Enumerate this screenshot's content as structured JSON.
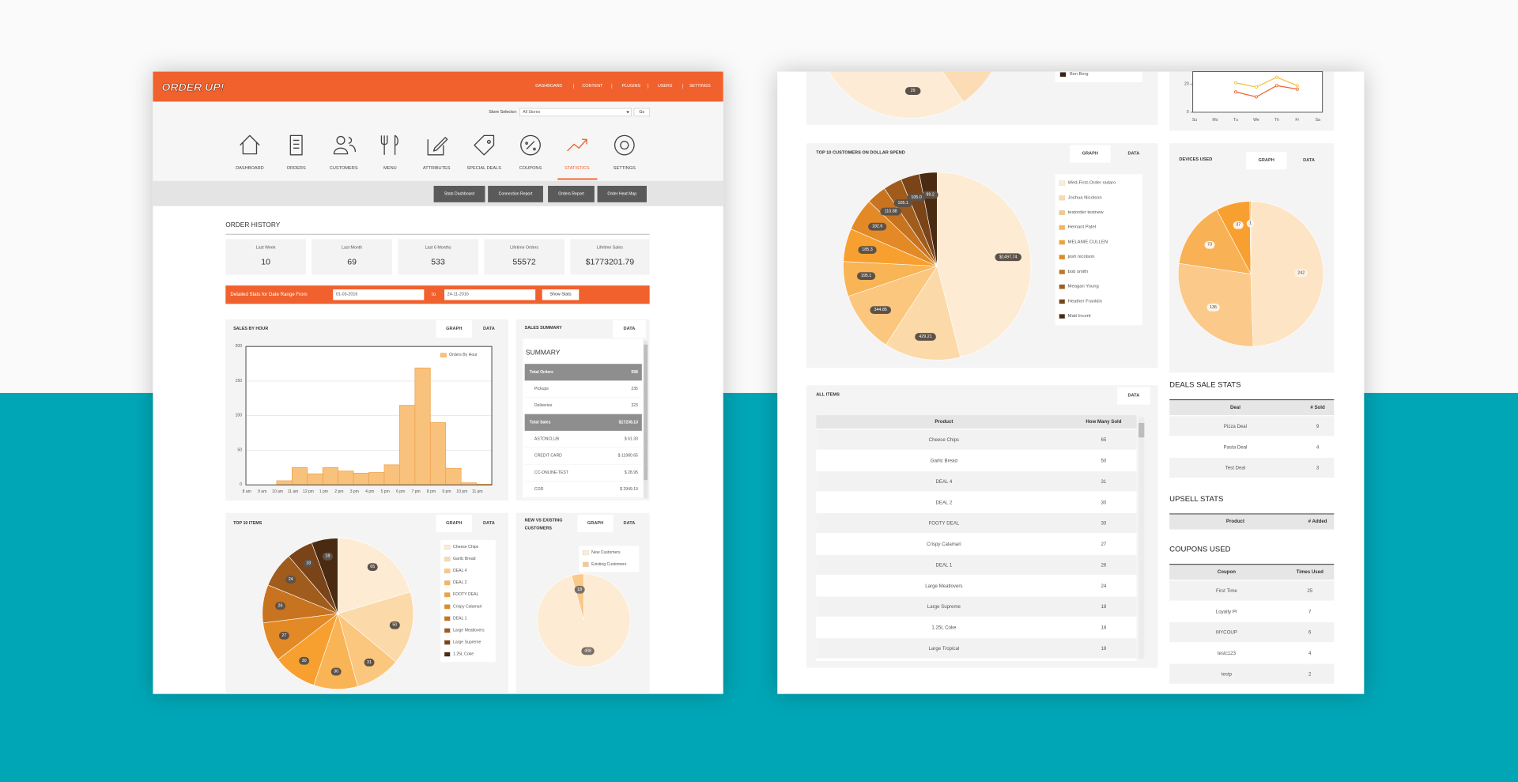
{
  "header": {
    "logo": "ORDER UP!",
    "nav": [
      "DASHBOARD",
      "CONTENT",
      "PLUGINS",
      "USERS",
      "SETTINGS"
    ]
  },
  "store_selector": {
    "label": "Store Selector:",
    "value": "All Stores",
    "button": "Go"
  },
  "menu": [
    "DASHBOARD",
    "ORDERS",
    "CUSTOMERS",
    "MENU",
    "ATTRIBUTES",
    "SPECIAL DEALS",
    "COUPONS",
    "STATISTICS",
    "SETTINGS"
  ],
  "subnav": [
    "Stats Dashboard",
    "Connection Report",
    "Orders Report",
    "Order Heat Map"
  ],
  "order_history": {
    "title": "ORDER HISTORY",
    "stats": [
      {
        "label": "Last Week",
        "value": 10
      },
      {
        "label": "Last Month",
        "value": 69
      },
      {
        "label": "Last 6 Months",
        "value": 533
      },
      {
        "label": "Lifetime Orders",
        "value": 55572
      },
      {
        "label": "Lifetime Sales",
        "value": "$1773201.79"
      }
    ]
  },
  "date_range": {
    "label": "Detailed Stats for Date Range From",
    "from": "01-03-2016",
    "to_label": "to",
    "to": "24-11-2016",
    "button": "Show Stats"
  },
  "sales_by_hour": {
    "title": "SALES BY HOUR",
    "tabs": [
      "GRAPH",
      "DATA"
    ],
    "chart_data": {
      "type": "bar",
      "categories": [
        "8 am",
        "9 am",
        "10 am",
        "11 am",
        "12 pm",
        "1 pm",
        "2 pm",
        "3 pm",
        "4 pm",
        "5 pm",
        "6 pm",
        "7 pm",
        "8 pm",
        "9 pm",
        "10 pm",
        "11 pm"
      ],
      "series": [
        {
          "name": "Orders By Hour",
          "color": "#f9c27c",
          "values": [
            0,
            0,
            6,
            25,
            16,
            25,
            20,
            17,
            18,
            29,
            115,
            169,
            90,
            24,
            3,
            1
          ]
        }
      ],
      "ylim": [
        0,
        200
      ],
      "yticks": [
        0,
        50,
        100,
        150,
        200
      ],
      "grid": true
    }
  },
  "sales_summary": {
    "title": "SALES SUMMARY",
    "tabs": [
      "DATA"
    ],
    "heading": "SUMMARY",
    "rows": [
      [
        "Total Orders",
        558
      ],
      [
        "Pickups",
        235
      ],
      [
        "Deliveries",
        323
      ],
      [
        "Total Sales",
        "$17238.13"
      ],
      [
        "ASTONCLUB",
        "$ 61.30"
      ],
      [
        "CREDIT CARD",
        "$ 11980.65"
      ],
      [
        "CC-ONLINE-TEST",
        "$ 28.95"
      ],
      [
        "COD",
        "$ 2949.19"
      ]
    ]
  },
  "top_items": {
    "title": "TOP 10 ITEMS",
    "tabs": [
      "GRAPH",
      "DATA"
    ],
    "chart_data": {
      "type": "pie",
      "categories": [
        "Cheese Chips",
        "Garlic Bread",
        "DEAL 4",
        "DEAL 2",
        "FOOTY DEAL",
        "Crispy Calamari",
        "DEAL 1",
        "Large Meatlovers",
        "Large Supreme",
        "1.25L Coke"
      ],
      "values": [
        65,
        50,
        31,
        30,
        30,
        27,
        26,
        24,
        18,
        18
      ],
      "colors": [
        "#fdebd3",
        "#fcd9a8",
        "#fbc77e",
        "#f9b455",
        "#f7a030",
        "#e38a26",
        "#c8731f",
        "#a05c1c",
        "#7a4418",
        "#4a2a10"
      ]
    }
  },
  "customers_split": {
    "title": [
      "NEW VS EXISTING",
      "CUSTOMERS"
    ],
    "tabs": [
      "GRAPH",
      "DATA"
    ],
    "chart_data": {
      "type": "pie",
      "categories": [
        "New Customers",
        "Existing Customers"
      ],
      "values": [
        408,
        18
      ],
      "colors": [
        "#fdebd3",
        "#f9c98a"
      ]
    }
  },
  "top_partial": {
    "legend_item": "Ben Borg",
    "slice_label": 29
  },
  "weekday_chart": {
    "chart_data": {
      "type": "line",
      "categories": [
        "Su",
        "Mo",
        "Tu",
        "We",
        "Th",
        "Fr",
        "Sa"
      ],
      "series": [
        {
          "color": "#f0612d",
          "values": [
            null,
            null,
            14.5,
            11,
            19,
            16.5,
            null
          ]
        },
        {
          "color": "#f3c13a",
          "values": [
            null,
            null,
            21,
            18,
            25,
            19,
            null
          ]
        }
      ],
      "ylim": [
        0,
        29
      ],
      "yticks": [
        0,
        20
      ]
    }
  },
  "top_customers": {
    "title": "TOP 10 CUSTOMERS ON DOLLAR SPEND",
    "tabs": [
      "GRAPH",
      "DATA"
    ],
    "chart_data": {
      "type": "pie",
      "categories": [
        "Wed-First-Order radaro",
        "Joshua Nicolson",
        "testorder testnew",
        "Hemant Patel",
        "MELANIE CULLEN",
        "josh nicolson",
        "bob smith",
        "Meagan Young",
        "Heather Franklin",
        "Matt Incerti"
      ],
      "values": [
        1497.74,
        429.21,
        344.85,
        195.1,
        185.3,
        182.6,
        110.88,
        105.1,
        105,
        99.2
      ],
      "value_labels": [
        "$1497.74",
        "429.21",
        "344.85",
        "195.1",
        "185.3",
        "182.6",
        "110.88",
        "105.1",
        "105.0",
        "99.2"
      ],
      "colors": [
        "#fdebd3",
        "#fcd9a8",
        "#fbc77e",
        "#f9b455",
        "#f7a030",
        "#e38a26",
        "#c8731f",
        "#a05c1c",
        "#7a4418",
        "#4a2a10"
      ]
    }
  },
  "all_items": {
    "title": "ALL ITEMS",
    "tabs": [
      "DATA"
    ],
    "header": [
      "Product",
      "How Many Sold"
    ],
    "rows": [
      [
        "Cheese Chips",
        65
      ],
      [
        "Garlic Bread",
        50
      ],
      [
        "DEAL 4",
        31
      ],
      [
        "DEAL 2",
        30
      ],
      [
        "FOOTY DEAL",
        30
      ],
      [
        "Crispy Calamari",
        27
      ],
      [
        "DEAL 1",
        26
      ],
      [
        "Large Meatlovers",
        24
      ],
      [
        "Large Supreme",
        18
      ],
      [
        "1.25L Coke",
        18
      ],
      [
        "Large Tropical",
        18
      ]
    ]
  },
  "devices": {
    "title": "DEVICES USED",
    "tabs": [
      "GRAPH",
      "DATA"
    ],
    "chart_data": {
      "type": "pie",
      "values": [
        242,
        136,
        73,
        37,
        1
      ],
      "colors": [
        "#fde4c4",
        "#fbc98a",
        "#f9b155",
        "#f7a030",
        "#e08a20"
      ]
    }
  },
  "deals": {
    "title": "DEALS SALE STATS",
    "header": [
      "Deal",
      "# Sold"
    ],
    "rows": [
      [
        "Pizza Deal",
        9
      ],
      [
        "Pasta Deal",
        4
      ],
      [
        "Test Deal",
        3
      ]
    ]
  },
  "upsell": {
    "title": "UPSELL STATS",
    "header": [
      "Product",
      "# Added"
    ],
    "rows": []
  },
  "coupons": {
    "title": "COUPONS USED",
    "header": [
      "Coupon",
      "Times Used"
    ],
    "rows": [
      [
        "First Time",
        25
      ],
      [
        "Loyalty Pr",
        7
      ],
      [
        "MYCOUP",
        6
      ],
      [
        "testc123",
        4
      ],
      [
        "testp",
        2
      ]
    ]
  }
}
